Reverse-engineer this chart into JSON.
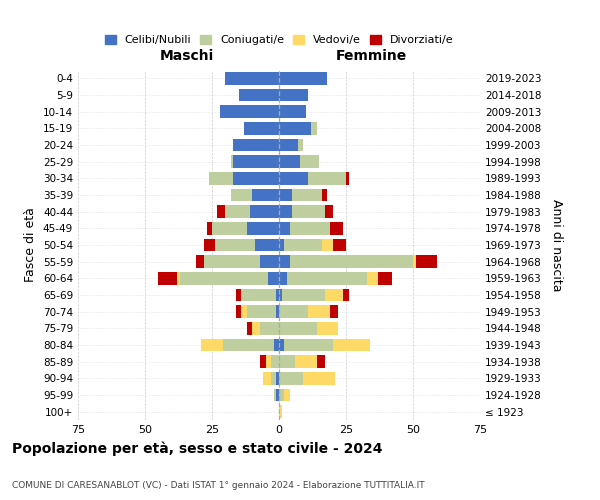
{
  "age_groups": [
    "100+",
    "95-99",
    "90-94",
    "85-89",
    "80-84",
    "75-79",
    "70-74",
    "65-69",
    "60-64",
    "55-59",
    "50-54",
    "45-49",
    "40-44",
    "35-39",
    "30-34",
    "25-29",
    "20-24",
    "15-19",
    "10-14",
    "5-9",
    "0-4"
  ],
  "birth_years": [
    "≤ 1923",
    "1924-1928",
    "1929-1933",
    "1934-1938",
    "1939-1943",
    "1944-1948",
    "1949-1953",
    "1954-1958",
    "1959-1963",
    "1964-1968",
    "1969-1973",
    "1974-1978",
    "1979-1983",
    "1984-1988",
    "1989-1993",
    "1994-1998",
    "1999-2003",
    "2004-2008",
    "2009-2013",
    "2014-2018",
    "2019-2023"
  ],
  "males": {
    "celibi": [
      0,
      1,
      1,
      0,
      2,
      0,
      1,
      1,
      4,
      7,
      9,
      12,
      11,
      10,
      17,
      17,
      17,
      13,
      22,
      15,
      20
    ],
    "coniugati": [
      0,
      1,
      2,
      3,
      19,
      7,
      11,
      13,
      33,
      21,
      15,
      13,
      9,
      8,
      9,
      1,
      0,
      0,
      0,
      0,
      0
    ],
    "vedovi": [
      0,
      0,
      3,
      2,
      8,
      3,
      2,
      0,
      1,
      0,
      0,
      0,
      0,
      0,
      0,
      0,
      0,
      0,
      0,
      0,
      0
    ],
    "divorziati": [
      0,
      0,
      0,
      2,
      0,
      2,
      2,
      2,
      7,
      3,
      4,
      2,
      3,
      0,
      0,
      0,
      0,
      0,
      0,
      0,
      0
    ]
  },
  "females": {
    "nubili": [
      0,
      0,
      0,
      0,
      2,
      0,
      0,
      1,
      3,
      4,
      2,
      4,
      5,
      5,
      11,
      8,
      7,
      12,
      10,
      11,
      18
    ],
    "coniugate": [
      0,
      2,
      9,
      6,
      18,
      14,
      11,
      16,
      30,
      46,
      14,
      15,
      12,
      11,
      14,
      7,
      2,
      2,
      0,
      0,
      0
    ],
    "vedove": [
      1,
      2,
      12,
      8,
      14,
      8,
      8,
      7,
      4,
      1,
      4,
      0,
      0,
      0,
      0,
      0,
      0,
      0,
      0,
      0,
      0
    ],
    "divorziate": [
      0,
      0,
      0,
      3,
      0,
      0,
      3,
      2,
      5,
      8,
      5,
      5,
      3,
      2,
      1,
      0,
      0,
      0,
      0,
      0,
      0
    ]
  },
  "colors": {
    "celibi": "#4472C4",
    "coniugati": "#BFCE9E",
    "vedovi": "#FFD966",
    "divorziati": "#C00000"
  },
  "xlim": 75,
  "title": "Popolazione per età, sesso e stato civile - 2024",
  "subtitle": "COMUNE DI CARESANABLOT (VC) - Dati ISTAT 1° gennaio 2024 - Elaborazione TUTTITALIA.IT",
  "xlabel_left": "Maschi",
  "xlabel_right": "Femmine",
  "ylabel_left": "Fasce di età",
  "ylabel_right": "Anni di nascita",
  "legend_labels": [
    "Celibi/Nubili",
    "Coniugati/e",
    "Vedovi/e",
    "Divorziati/e"
  ],
  "background_color": "#ffffff",
  "grid_color": "#cccccc"
}
